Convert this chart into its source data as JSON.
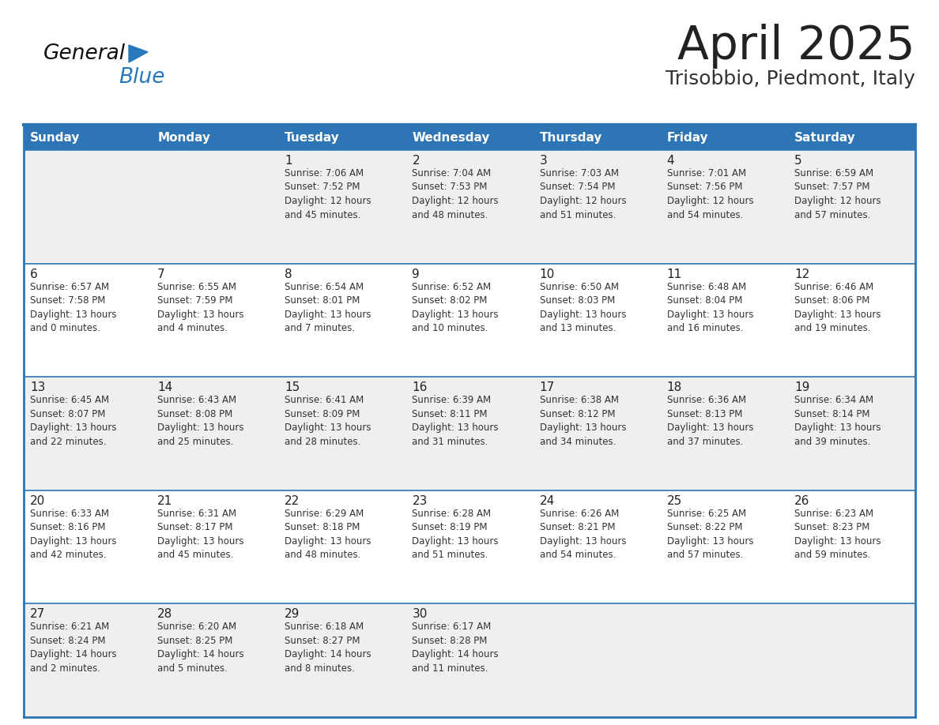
{
  "title": "April 2025",
  "subtitle": "Trisobbio, Piedmont, Italy",
  "days_of_week": [
    "Sunday",
    "Monday",
    "Tuesday",
    "Wednesday",
    "Thursday",
    "Friday",
    "Saturday"
  ],
  "header_bg": "#2E75B6",
  "header_text": "#FFFFFF",
  "row_bg_odd": "#EFEFEF",
  "row_bg_even": "#FFFFFF",
  "cell_text_color": "#333333",
  "day_num_color": "#222222",
  "border_color": "#2E75B6",
  "title_color": "#222222",
  "subtitle_color": "#333333",
  "logo_general_color": "#111111",
  "logo_blue_color": "#2878BE",
  "calendar_data": [
    [
      {
        "day": null,
        "info": ""
      },
      {
        "day": null,
        "info": ""
      },
      {
        "day": 1,
        "info": "Sunrise: 7:06 AM\nSunset: 7:52 PM\nDaylight: 12 hours\nand 45 minutes."
      },
      {
        "day": 2,
        "info": "Sunrise: 7:04 AM\nSunset: 7:53 PM\nDaylight: 12 hours\nand 48 minutes."
      },
      {
        "day": 3,
        "info": "Sunrise: 7:03 AM\nSunset: 7:54 PM\nDaylight: 12 hours\nand 51 minutes."
      },
      {
        "day": 4,
        "info": "Sunrise: 7:01 AM\nSunset: 7:56 PM\nDaylight: 12 hours\nand 54 minutes."
      },
      {
        "day": 5,
        "info": "Sunrise: 6:59 AM\nSunset: 7:57 PM\nDaylight: 12 hours\nand 57 minutes."
      }
    ],
    [
      {
        "day": 6,
        "info": "Sunrise: 6:57 AM\nSunset: 7:58 PM\nDaylight: 13 hours\nand 0 minutes."
      },
      {
        "day": 7,
        "info": "Sunrise: 6:55 AM\nSunset: 7:59 PM\nDaylight: 13 hours\nand 4 minutes."
      },
      {
        "day": 8,
        "info": "Sunrise: 6:54 AM\nSunset: 8:01 PM\nDaylight: 13 hours\nand 7 minutes."
      },
      {
        "day": 9,
        "info": "Sunrise: 6:52 AM\nSunset: 8:02 PM\nDaylight: 13 hours\nand 10 minutes."
      },
      {
        "day": 10,
        "info": "Sunrise: 6:50 AM\nSunset: 8:03 PM\nDaylight: 13 hours\nand 13 minutes."
      },
      {
        "day": 11,
        "info": "Sunrise: 6:48 AM\nSunset: 8:04 PM\nDaylight: 13 hours\nand 16 minutes."
      },
      {
        "day": 12,
        "info": "Sunrise: 6:46 AM\nSunset: 8:06 PM\nDaylight: 13 hours\nand 19 minutes."
      }
    ],
    [
      {
        "day": 13,
        "info": "Sunrise: 6:45 AM\nSunset: 8:07 PM\nDaylight: 13 hours\nand 22 minutes."
      },
      {
        "day": 14,
        "info": "Sunrise: 6:43 AM\nSunset: 8:08 PM\nDaylight: 13 hours\nand 25 minutes."
      },
      {
        "day": 15,
        "info": "Sunrise: 6:41 AM\nSunset: 8:09 PM\nDaylight: 13 hours\nand 28 minutes."
      },
      {
        "day": 16,
        "info": "Sunrise: 6:39 AM\nSunset: 8:11 PM\nDaylight: 13 hours\nand 31 minutes."
      },
      {
        "day": 17,
        "info": "Sunrise: 6:38 AM\nSunset: 8:12 PM\nDaylight: 13 hours\nand 34 minutes."
      },
      {
        "day": 18,
        "info": "Sunrise: 6:36 AM\nSunset: 8:13 PM\nDaylight: 13 hours\nand 37 minutes."
      },
      {
        "day": 19,
        "info": "Sunrise: 6:34 AM\nSunset: 8:14 PM\nDaylight: 13 hours\nand 39 minutes."
      }
    ],
    [
      {
        "day": 20,
        "info": "Sunrise: 6:33 AM\nSunset: 8:16 PM\nDaylight: 13 hours\nand 42 minutes."
      },
      {
        "day": 21,
        "info": "Sunrise: 6:31 AM\nSunset: 8:17 PM\nDaylight: 13 hours\nand 45 minutes."
      },
      {
        "day": 22,
        "info": "Sunrise: 6:29 AM\nSunset: 8:18 PM\nDaylight: 13 hours\nand 48 minutes."
      },
      {
        "day": 23,
        "info": "Sunrise: 6:28 AM\nSunset: 8:19 PM\nDaylight: 13 hours\nand 51 minutes."
      },
      {
        "day": 24,
        "info": "Sunrise: 6:26 AM\nSunset: 8:21 PM\nDaylight: 13 hours\nand 54 minutes."
      },
      {
        "day": 25,
        "info": "Sunrise: 6:25 AM\nSunset: 8:22 PM\nDaylight: 13 hours\nand 57 minutes."
      },
      {
        "day": 26,
        "info": "Sunrise: 6:23 AM\nSunset: 8:23 PM\nDaylight: 13 hours\nand 59 minutes."
      }
    ],
    [
      {
        "day": 27,
        "info": "Sunrise: 6:21 AM\nSunset: 8:24 PM\nDaylight: 14 hours\nand 2 minutes."
      },
      {
        "day": 28,
        "info": "Sunrise: 6:20 AM\nSunset: 8:25 PM\nDaylight: 14 hours\nand 5 minutes."
      },
      {
        "day": 29,
        "info": "Sunrise: 6:18 AM\nSunset: 8:27 PM\nDaylight: 14 hours\nand 8 minutes."
      },
      {
        "day": 30,
        "info": "Sunrise: 6:17 AM\nSunset: 8:28 PM\nDaylight: 14 hours\nand 11 minutes."
      },
      {
        "day": null,
        "info": ""
      },
      {
        "day": null,
        "info": ""
      },
      {
        "day": null,
        "info": ""
      }
    ]
  ],
  "fig_width": 11.88,
  "fig_height": 9.18,
  "dpi": 100
}
